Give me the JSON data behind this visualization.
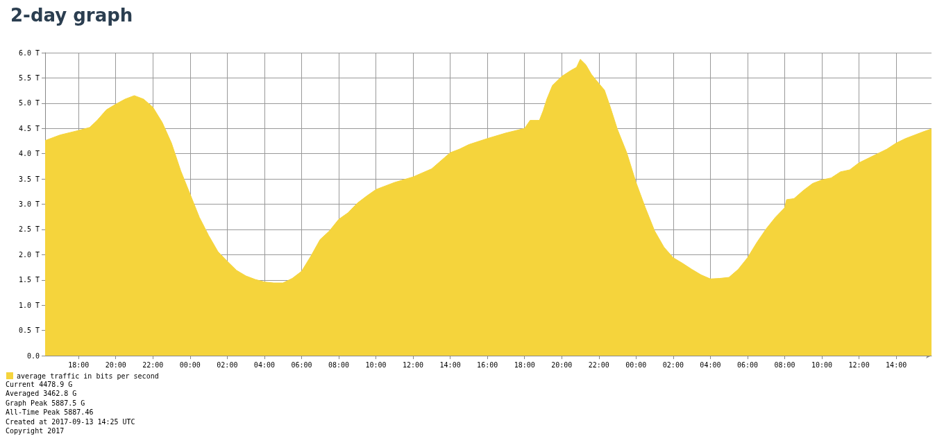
{
  "chart_data": {
    "type": "area",
    "title": "2-day graph",
    "x": [
      "2017-09-11T16:12",
      "2017-09-11T17:00",
      "2017-09-11T18:00",
      "2017-09-11T18:36",
      "2017-09-11T19:00",
      "2017-09-11T19:30",
      "2017-09-11T20:00",
      "2017-09-11T20:30",
      "2017-09-11T21:00",
      "2017-09-11T21:30",
      "2017-09-11T22:00",
      "2017-09-11T22:30",
      "2017-09-11T23:00",
      "2017-09-11T23:30",
      "2017-09-12T00:00",
      "2017-09-12T00:30",
      "2017-09-12T01:00",
      "2017-09-12T01:30",
      "2017-09-12T02:00",
      "2017-09-12T02:30",
      "2017-09-12T03:00",
      "2017-09-12T03:30",
      "2017-09-12T04:00",
      "2017-09-12T04:30",
      "2017-09-12T05:00",
      "2017-09-12T05:30",
      "2017-09-12T06:00",
      "2017-09-12T06:30",
      "2017-09-12T07:00",
      "2017-09-12T07:30",
      "2017-09-12T08:00",
      "2017-09-12T08:30",
      "2017-09-12T09:00",
      "2017-09-12T09:30",
      "2017-09-12T10:00",
      "2017-09-12T11:00",
      "2017-09-12T12:00",
      "2017-09-12T13:00",
      "2017-09-12T14:00",
      "2017-09-12T14:30",
      "2017-09-12T15:00",
      "2017-09-12T16:00",
      "2017-09-12T17:00",
      "2017-09-12T18:00",
      "2017-09-12T18:18",
      "2017-09-12T18:48",
      "2017-09-12T19:00",
      "2017-09-12T19:12",
      "2017-09-12T19:30",
      "2017-09-12T20:00",
      "2017-09-12T20:30",
      "2017-09-12T20:48",
      "2017-09-12T21:00",
      "2017-09-12T21:18",
      "2017-09-12T21:36",
      "2017-09-12T22:00",
      "2017-09-12T22:18",
      "2017-09-12T22:36",
      "2017-09-12T23:00",
      "2017-09-12T23:30",
      "2017-09-13T00:00",
      "2017-09-13T00:30",
      "2017-09-13T01:00",
      "2017-09-13T01:30",
      "2017-09-13T02:00",
      "2017-09-13T02:30",
      "2017-09-13T03:00",
      "2017-09-13T03:30",
      "2017-09-13T04:00",
      "2017-09-13T04:30",
      "2017-09-13T05:00",
      "2017-09-13T05:30",
      "2017-09-13T06:00",
      "2017-09-13T06:30",
      "2017-09-13T07:00",
      "2017-09-13T07:30",
      "2017-09-13T08:00",
      "2017-09-13T08:06",
      "2017-09-13T08:30",
      "2017-09-13T09:00",
      "2017-09-13T09:30",
      "2017-09-13T10:00",
      "2017-09-13T10:30",
      "2017-09-13T11:00",
      "2017-09-13T11:30",
      "2017-09-13T12:00",
      "2017-09-13T12:30",
      "2017-09-13T13:00",
      "2017-09-13T13:30",
      "2017-09-13T14:00",
      "2017-09-13T14:30",
      "2017-09-13T15:00",
      "2017-09-13T15:30",
      "2017-09-13T15:54"
    ],
    "series": [
      {
        "name": "average traffic in bits per second",
        "color": "#f5d43c",
        "values": [
          4.26,
          4.37,
          4.46,
          4.52,
          4.66,
          4.87,
          4.98,
          5.08,
          5.15,
          5.08,
          4.92,
          4.62,
          4.21,
          3.66,
          3.2,
          2.74,
          2.38,
          2.06,
          1.87,
          1.69,
          1.58,
          1.51,
          1.46,
          1.44,
          1.44,
          1.53,
          1.67,
          1.97,
          2.3,
          2.47,
          2.7,
          2.83,
          3.02,
          3.16,
          3.29,
          3.43,
          3.54,
          3.7,
          4.02,
          4.09,
          4.18,
          4.3,
          4.41,
          4.5,
          4.66,
          4.66,
          4.85,
          5.08,
          5.35,
          5.53,
          5.65,
          5.71,
          5.87,
          5.76,
          5.57,
          5.39,
          5.26,
          4.94,
          4.48,
          4.02,
          3.43,
          2.93,
          2.47,
          2.15,
          1.94,
          1.83,
          1.71,
          1.6,
          1.52,
          1.53,
          1.55,
          1.71,
          1.94,
          2.24,
          2.51,
          2.74,
          2.93,
          3.09,
          3.11,
          3.27,
          3.41,
          3.48,
          3.52,
          3.64,
          3.68,
          3.82,
          3.91,
          4.0,
          4.09,
          4.21,
          4.3,
          4.37,
          4.44,
          4.49
        ]
      }
    ],
    "xlim": [
      "2017-09-11T16:12",
      "2017-09-13T15:54"
    ],
    "xticks": [
      {
        "value": "2017-09-11T18:00",
        "label": "18:00"
      },
      {
        "value": "2017-09-11T20:00",
        "label": "20:00"
      },
      {
        "value": "2017-09-11T22:00",
        "label": "22:00"
      },
      {
        "value": "2017-09-12T00:00",
        "label": "00:00"
      },
      {
        "value": "2017-09-12T02:00",
        "label": "02:00"
      },
      {
        "value": "2017-09-12T04:00",
        "label": "04:00"
      },
      {
        "value": "2017-09-12T06:00",
        "label": "06:00"
      },
      {
        "value": "2017-09-12T08:00",
        "label": "08:00"
      },
      {
        "value": "2017-09-12T10:00",
        "label": "10:00"
      },
      {
        "value": "2017-09-12T12:00",
        "label": "12:00"
      },
      {
        "value": "2017-09-12T14:00",
        "label": "14:00"
      },
      {
        "value": "2017-09-12T16:00",
        "label": "16:00"
      },
      {
        "value": "2017-09-12T18:00",
        "label": "18:00"
      },
      {
        "value": "2017-09-12T20:00",
        "label": "20:00"
      },
      {
        "value": "2017-09-12T22:00",
        "label": "22:00"
      },
      {
        "value": "2017-09-13T00:00",
        "label": "00:00"
      },
      {
        "value": "2017-09-13T02:00",
        "label": "02:00"
      },
      {
        "value": "2017-09-13T04:00",
        "label": "04:00"
      },
      {
        "value": "2017-09-13T06:00",
        "label": "06:00"
      },
      {
        "value": "2017-09-13T08:00",
        "label": "08:00"
      },
      {
        "value": "2017-09-13T10:00",
        "label": "10:00"
      },
      {
        "value": "2017-09-13T12:00",
        "label": "12:00"
      },
      {
        "value": "2017-09-13T14:00",
        "label": "14:00"
      }
    ],
    "ylim": [
      0,
      6
    ],
    "yticks": [
      {
        "value": 0,
        "label": "0.0"
      },
      {
        "value": 0.5,
        "label": "0.5 T"
      },
      {
        "value": 1,
        "label": "1.0 T"
      },
      {
        "value": 1.5,
        "label": "1.5 T"
      },
      {
        "value": 2,
        "label": "2.0 T"
      },
      {
        "value": 2.5,
        "label": "2.5 T"
      },
      {
        "value": 3,
        "label": "3.0 T"
      },
      {
        "value": 3.5,
        "label": "3.5 T"
      },
      {
        "value": 4,
        "label": "4.0 T"
      },
      {
        "value": 4.5,
        "label": "4.5 T"
      },
      {
        "value": 5,
        "label": "5.0 T"
      },
      {
        "value": 5.5,
        "label": "5.5 T"
      },
      {
        "value": 6,
        "label": "6.0 T"
      }
    ],
    "grid": true,
    "legend": "bottom left",
    "marker": "none",
    "annotations": [
      "Current 4478.9 G",
      "Averaged 3462.8 G",
      "Graph Peak 5887.5 G",
      "All-Time Peak 5887.46",
      "Created at 2017-09-13 14:25 UTC",
      "Copyright 2017"
    ]
  }
}
